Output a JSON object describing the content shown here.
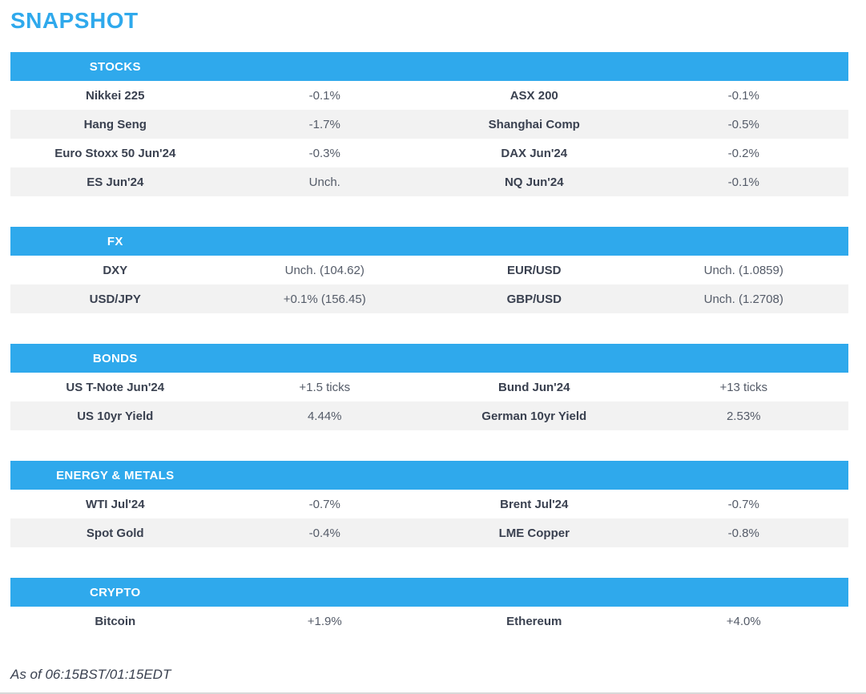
{
  "page": {
    "title": "SNAPSHOT",
    "as_of": "As of 06:15BST/01:15EDT"
  },
  "colors": {
    "accent": "#2FA9EC",
    "row_alt": "#F2F2F2",
    "name_text": "#3A4150",
    "value_text": "#545B68"
  },
  "sections": [
    {
      "header": "STOCKS",
      "rows": [
        {
          "name1": "Nikkei 225",
          "value1": "-0.1%",
          "name2": "ASX 200",
          "value2": "-0.1%"
        },
        {
          "name1": "Hang Seng",
          "value1": "-1.7%",
          "name2": "Shanghai Comp",
          "value2": "-0.5%"
        },
        {
          "name1": "Euro Stoxx 50 Jun'24",
          "value1": "-0.3%",
          "name2": "DAX Jun'24",
          "value2": "-0.2%"
        },
        {
          "name1": "ES Jun'24",
          "value1": "Unch.",
          "name2": "NQ Jun'24",
          "value2": "-0.1%"
        }
      ]
    },
    {
      "header": "FX",
      "rows": [
        {
          "name1": "DXY",
          "value1": "Unch. (104.62)",
          "name2": "EUR/USD",
          "value2": "Unch. (1.0859)"
        },
        {
          "name1": "USD/JPY",
          "value1": "+0.1% (156.45)",
          "name2": "GBP/USD",
          "value2": "Unch. (1.2708)"
        }
      ]
    },
    {
      "header": "BONDS",
      "rows": [
        {
          "name1": "US T-Note Jun'24",
          "value1": "+1.5 ticks",
          "name2": "Bund Jun'24",
          "value2": "+13 ticks"
        },
        {
          "name1": "US 10yr Yield",
          "value1": "4.44%",
          "name2": "German 10yr Yield",
          "value2": "2.53%"
        }
      ]
    },
    {
      "header": "ENERGY & METALS",
      "rows": [
        {
          "name1": "WTI Jul'24",
          "value1": "-0.7%",
          "name2": "Brent Jul'24",
          "value2": "-0.7%"
        },
        {
          "name1": "Spot Gold",
          "value1": "-0.4%",
          "name2": "LME Copper",
          "value2": "-0.8%"
        }
      ]
    },
    {
      "header": "CRYPTO",
      "rows": [
        {
          "name1": "Bitcoin",
          "value1": "+1.9%",
          "name2": "Ethereum",
          "value2": "+4.0%"
        }
      ]
    }
  ]
}
